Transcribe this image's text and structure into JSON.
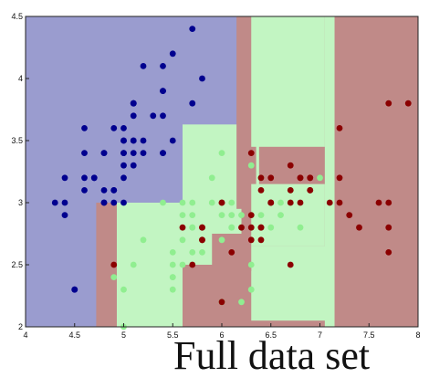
{
  "caption": "Full data set",
  "chart_data": {
    "type": "scatter",
    "title": "",
    "xlabel": "",
    "ylabel": "",
    "xlim": [
      4,
      8
    ],
    "ylim": [
      2,
      4.5
    ],
    "grid": false,
    "xticks": [
      4,
      4.5,
      5,
      5.5,
      6,
      6.5,
      7,
      7.5,
      8
    ],
    "xtick_labels": [
      "4",
      "4.5",
      "5",
      "5.5",
      "6",
      "6.5",
      "7",
      "7.5",
      "8"
    ],
    "yticks": [
      2,
      2.5,
      3,
      3.5,
      4,
      4.5
    ],
    "ytick_labels": [
      "2",
      "2.5",
      "3",
      "3.5",
      "4",
      "4.5"
    ],
    "colors": {
      "class_0_region": "#9a9ccf",
      "class_1_region": "#c2f5c2",
      "class_2_region": "#c08a88",
      "class_0_point": "#00008f",
      "class_1_point": "#90ee90",
      "class_2_point": "#8b0000"
    },
    "regions": [
      {
        "class": 0,
        "x": [
          4.0,
          8.0
        ],
        "y": [
          2.0,
          4.5
        ]
      },
      {
        "class": 2,
        "x": [
          4.72,
          8.0
        ],
        "y": [
          2.0,
          3.0
        ]
      },
      {
        "class": 1,
        "x": [
          4.93,
          6.2
        ],
        "y": [
          2.0,
          3.0
        ]
      },
      {
        "class": 1,
        "x": [
          5.6,
          6.2
        ],
        "y": [
          2.95,
          3.63
        ]
      },
      {
        "class": 1,
        "x": [
          6.2,
          7.12
        ],
        "y": [
          2.05,
          2.65
        ]
      },
      {
        "class": 2,
        "x": [
          5.6,
          6.3
        ],
        "y": [
          2.0,
          2.5
        ]
      },
      {
        "class": 2,
        "x": [
          5.9,
          6.3
        ],
        "y": [
          2.45,
          2.75
        ]
      },
      {
        "class": 2,
        "x": [
          6.15,
          8.0
        ],
        "y": [
          2.95,
          4.5
        ]
      },
      {
        "class": 1,
        "x": [
          6.3,
          7.05
        ],
        "y": [
          2.65,
          3.15
        ]
      },
      {
        "class": 1,
        "x": [
          6.3,
          7.05
        ],
        "y": [
          3.45,
          4.5
        ]
      },
      {
        "class": 1,
        "x": [
          7.05,
          7.15
        ],
        "y": [
          2.0,
          4.5
        ]
      },
      {
        "class": 2,
        "x": [
          7.15,
          8.0
        ],
        "y": [
          2.0,
          4.5
        ]
      },
      {
        "class": 1,
        "x": [
          6.35,
          6.38
        ],
        "y": [
          3.0,
          4.5
        ]
      }
    ],
    "series": [
      {
        "class": 0,
        "x": [
          4.3,
          4.4,
          4.4,
          4.4,
          4.5,
          4.6,
          4.6,
          4.6,
          4.6,
          4.7,
          4.7,
          4.8,
          4.8,
          4.8,
          4.8,
          4.8,
          4.9,
          4.9,
          4.9,
          4.9,
          5.0,
          5.0,
          5.0,
          5.0,
          5.0,
          5.0,
          5.0,
          5.0,
          5.1,
          5.1,
          5.1,
          5.1,
          5.1,
          5.1,
          5.1,
          5.1,
          5.2,
          5.2,
          5.2,
          5.3,
          5.4,
          5.4,
          5.4,
          5.4,
          5.4,
          5.5,
          5.5,
          5.7,
          5.7,
          5.8,
          4.5,
          5.4
        ],
        "y": [
          3.0,
          2.9,
          3.0,
          3.2,
          2.3,
          3.1,
          3.2,
          3.4,
          3.6,
          3.2,
          3.2,
          3.0,
          3.0,
          3.1,
          3.4,
          3.4,
          3.0,
          3.1,
          3.1,
          3.6,
          3.0,
          3.2,
          3.3,
          3.4,
          3.4,
          3.5,
          3.5,
          3.6,
          3.3,
          3.4,
          3.5,
          3.5,
          3.7,
          3.8,
          3.8,
          3.8,
          3.4,
          3.5,
          4.1,
          3.7,
          3.4,
          3.7,
          3.9,
          3.9,
          4.1,
          3.5,
          4.2,
          3.8,
          4.4,
          4.0,
          2.3,
          3.4
        ]
      },
      {
        "class": 1,
        "x": [
          4.9,
          5.0,
          5.0,
          5.1,
          5.2,
          5.5,
          5.5,
          5.5,
          5.5,
          5.5,
          5.6,
          5.6,
          5.6,
          5.6,
          5.7,
          5.7,
          5.7,
          5.7,
          5.7,
          5.8,
          5.8,
          5.8,
          5.9,
          5.9,
          6.0,
          6.0,
          6.0,
          6.0,
          6.0,
          6.1,
          6.1,
          6.1,
          6.1,
          6.2,
          6.2,
          6.3,
          6.3,
          6.3,
          6.4,
          6.4,
          6.5,
          6.6,
          6.6,
          6.7,
          6.7,
          6.7,
          6.8,
          6.9,
          7.0,
          5.4
        ],
        "y": [
          2.4,
          2.0,
          2.3,
          2.5,
          2.7,
          2.3,
          2.4,
          2.4,
          2.5,
          2.6,
          2.5,
          2.7,
          2.9,
          3.0,
          2.6,
          2.8,
          2.8,
          2.9,
          3.0,
          2.6,
          2.7,
          2.7,
          3.0,
          3.2,
          2.2,
          2.7,
          2.9,
          3.4,
          2.2,
          2.8,
          2.8,
          2.9,
          3.0,
          2.2,
          2.9,
          2.3,
          2.5,
          3.3,
          2.9,
          3.2,
          2.8,
          2.9,
          3.0,
          3.0,
          3.1,
          3.1,
          2.8,
          3.1,
          3.2,
          3.0
        ]
      },
      {
        "class": 2,
        "x": [
          4.9,
          5.6,
          5.7,
          5.8,
          5.8,
          5.8,
          6.0,
          6.0,
          6.1,
          6.2,
          6.3,
          6.3,
          6.3,
          6.3,
          6.4,
          6.4,
          6.4,
          6.4,
          6.5,
          6.5,
          6.5,
          6.5,
          6.7,
          6.7,
          6.7,
          6.7,
          6.8,
          6.8,
          6.9,
          6.9,
          6.9,
          7.1,
          7.2,
          7.2,
          7.2,
          7.3,
          7.4,
          7.6,
          7.7,
          7.7,
          7.7,
          7.7,
          7.9,
          6.0,
          5.8,
          6.4,
          6.9,
          6.8
        ],
        "y": [
          2.5,
          2.8,
          2.5,
          2.7,
          2.8,
          2.7,
          2.2,
          3.0,
          2.6,
          2.8,
          2.7,
          2.8,
          2.9,
          3.4,
          2.8,
          3.1,
          3.2,
          2.7,
          3.0,
          3.2,
          3.0,
          3.0,
          2.5,
          3.0,
          3.1,
          3.3,
          3.0,
          3.2,
          3.1,
          3.1,
          3.2,
          3.0,
          3.0,
          3.2,
          3.6,
          2.9,
          2.8,
          3.0,
          2.6,
          2.8,
          3.0,
          3.8,
          3.8,
          3.0,
          2.8,
          2.8,
          3.2,
          3.2
        ]
      }
    ]
  }
}
